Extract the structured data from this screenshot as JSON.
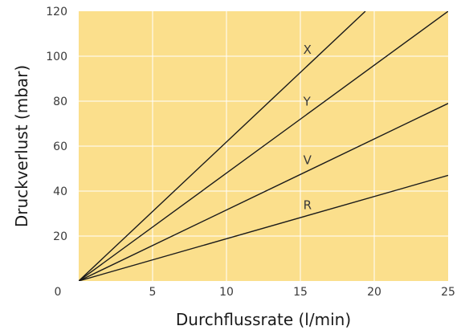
{
  "chart_data": {
    "type": "line",
    "xlabel": "Durchflussrate (l/min)",
    "ylabel": "Druckverlust  (mbar)",
    "xlim": [
      0,
      25
    ],
    "ylim": [
      0,
      120
    ],
    "x_ticks": [
      0,
      5,
      10,
      15,
      20,
      25
    ],
    "y_ticks": [
      20,
      40,
      60,
      80,
      100,
      120
    ],
    "x_tick_labels": [
      "0",
      "5",
      "10",
      "15",
      "20",
      "25"
    ],
    "y_tick_labels": [
      "20",
      "40",
      "60",
      "80",
      "100",
      "120"
    ],
    "grid": true,
    "colors": {
      "plot_background": "#fbdf8c",
      "grid": "#ffffff",
      "line": "#1a1a1a"
    },
    "series": [
      {
        "name": "X",
        "x": [
          0,
          19.4
        ],
        "y": [
          0,
          120
        ],
        "label_x": 15.2,
        "label_y": 101
      },
      {
        "name": "Y",
        "x": [
          0,
          25
        ],
        "y": [
          0,
          120
        ],
        "label_x": 15.2,
        "label_y": 78
      },
      {
        "name": "V",
        "x": [
          0,
          25
        ],
        "y": [
          0,
          79
        ],
        "label_x": 15.2,
        "label_y": 52
      },
      {
        "name": "R",
        "x": [
          0,
          25
        ],
        "y": [
          0,
          47
        ],
        "label_x": 15.2,
        "label_y": 32
      }
    ]
  }
}
